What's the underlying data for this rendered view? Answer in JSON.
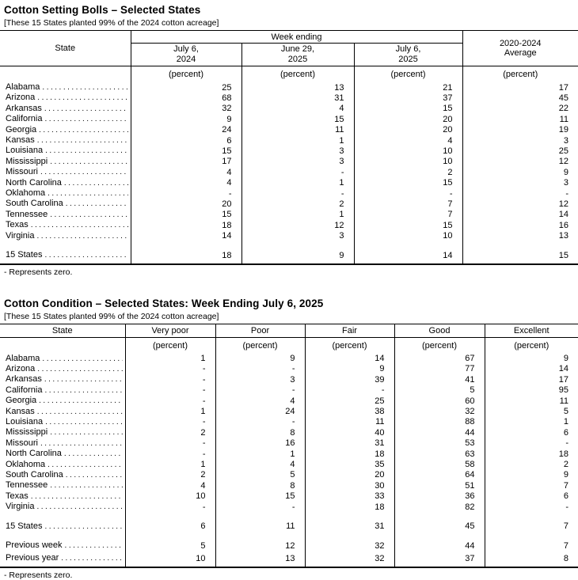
{
  "table1": {
    "title": "Cotton Setting Bolls – Selected States",
    "note": "[These 15 States planted 99% of the 2024 cotton acreage]",
    "state_header": "State",
    "week_ending_label": "Week ending",
    "week_columns": [
      {
        "line1": "July 6,",
        "line2": "2024"
      },
      {
        "line1": "June 29,",
        "line2": "2025"
      },
      {
        "line1": "July 6,",
        "line2": "2025"
      }
    ],
    "avg_column": {
      "line1": "2020-2024",
      "line2": "Average"
    },
    "unit_label": "(percent)",
    "rows": [
      {
        "label": "Alabama",
        "values": [
          "25",
          "13",
          "21",
          "17"
        ]
      },
      {
        "label": "Arizona",
        "values": [
          "68",
          "31",
          "37",
          "45"
        ]
      },
      {
        "label": "Arkansas",
        "values": [
          "32",
          "4",
          "15",
          "22"
        ]
      },
      {
        "label": "California",
        "values": [
          "9",
          "15",
          "20",
          "11"
        ]
      },
      {
        "label": "Georgia",
        "values": [
          "24",
          "11",
          "20",
          "19"
        ]
      },
      {
        "label": "Kansas",
        "values": [
          "6",
          "1",
          "4",
          "3"
        ]
      },
      {
        "label": "Louisiana",
        "values": [
          "15",
          "3",
          "10",
          "25"
        ]
      },
      {
        "label": "Mississippi",
        "values": [
          "17",
          "3",
          "10",
          "12"
        ]
      },
      {
        "label": "Missouri",
        "values": [
          "4",
          "-",
          "2",
          "9"
        ]
      },
      {
        "label": "North Carolina",
        "values": [
          "4",
          "1",
          "15",
          "3"
        ]
      },
      {
        "label": "Oklahoma",
        "values": [
          "-",
          "-",
          "-",
          "-"
        ]
      },
      {
        "label": "South Carolina",
        "values": [
          "20",
          "2",
          "7",
          "12"
        ]
      },
      {
        "label": "Tennessee",
        "values": [
          "15",
          "1",
          "7",
          "14"
        ]
      },
      {
        "label": "Texas",
        "values": [
          "18",
          "12",
          "15",
          "16"
        ]
      },
      {
        "label": "Virginia",
        "values": [
          "14",
          "3",
          "10",
          "13"
        ]
      }
    ],
    "total_row": {
      "label": "15 States",
      "values": [
        "18",
        "9",
        "14",
        "15"
      ]
    },
    "footnote": "- Represents zero."
  },
  "table2": {
    "title": "Cotton Condition – Selected States: Week Ending July 6, 2025",
    "note": "[These 15 States planted 99% of the 2024 cotton acreage]",
    "state_header": "State",
    "condition_columns": [
      "Very poor",
      "Poor",
      "Fair",
      "Good",
      "Excellent"
    ],
    "unit_label": "(percent)",
    "rows": [
      {
        "label": "Alabama",
        "values": [
          "1",
          "9",
          "14",
          "67",
          "9"
        ]
      },
      {
        "label": "Arizona",
        "values": [
          "-",
          "-",
          "9",
          "77",
          "14"
        ]
      },
      {
        "label": "Arkansas",
        "values": [
          "-",
          "3",
          "39",
          "41",
          "17"
        ]
      },
      {
        "label": "California",
        "values": [
          "-",
          "-",
          "-",
          "5",
          "95"
        ]
      },
      {
        "label": "Georgia",
        "values": [
          "-",
          "4",
          "25",
          "60",
          "11"
        ]
      },
      {
        "label": "Kansas",
        "values": [
          "1",
          "24",
          "38",
          "32",
          "5"
        ]
      },
      {
        "label": "Louisiana",
        "values": [
          "-",
          "-",
          "11",
          "88",
          "1"
        ]
      },
      {
        "label": "Mississippi",
        "values": [
          "2",
          "8",
          "40",
          "44",
          "6"
        ]
      },
      {
        "label": "Missouri",
        "values": [
          "-",
          "16",
          "31",
          "53",
          "-"
        ]
      },
      {
        "label": "North Carolina",
        "values": [
          "-",
          "1",
          "18",
          "63",
          "18"
        ]
      },
      {
        "label": "Oklahoma",
        "values": [
          "1",
          "4",
          "35",
          "58",
          "2"
        ]
      },
      {
        "label": "South Carolina",
        "values": [
          "2",
          "5",
          "20",
          "64",
          "9"
        ]
      },
      {
        "label": "Tennessee",
        "values": [
          "4",
          "8",
          "30",
          "51",
          "7"
        ]
      },
      {
        "label": "Texas",
        "values": [
          "10",
          "15",
          "33",
          "36",
          "6"
        ]
      },
      {
        "label": "Virginia",
        "values": [
          "-",
          "-",
          "18",
          "82",
          "-"
        ]
      }
    ],
    "total_row": {
      "label": "15 States",
      "values": [
        "6",
        "11",
        "31",
        "45",
        "7"
      ]
    },
    "comparison_rows": [
      {
        "label": "Previous week",
        "values": [
          "5",
          "12",
          "32",
          "44",
          "7"
        ]
      },
      {
        "label": "Previous year",
        "values": [
          "10",
          "13",
          "32",
          "37",
          "8"
        ]
      }
    ],
    "footnote": "- Represents zero."
  }
}
